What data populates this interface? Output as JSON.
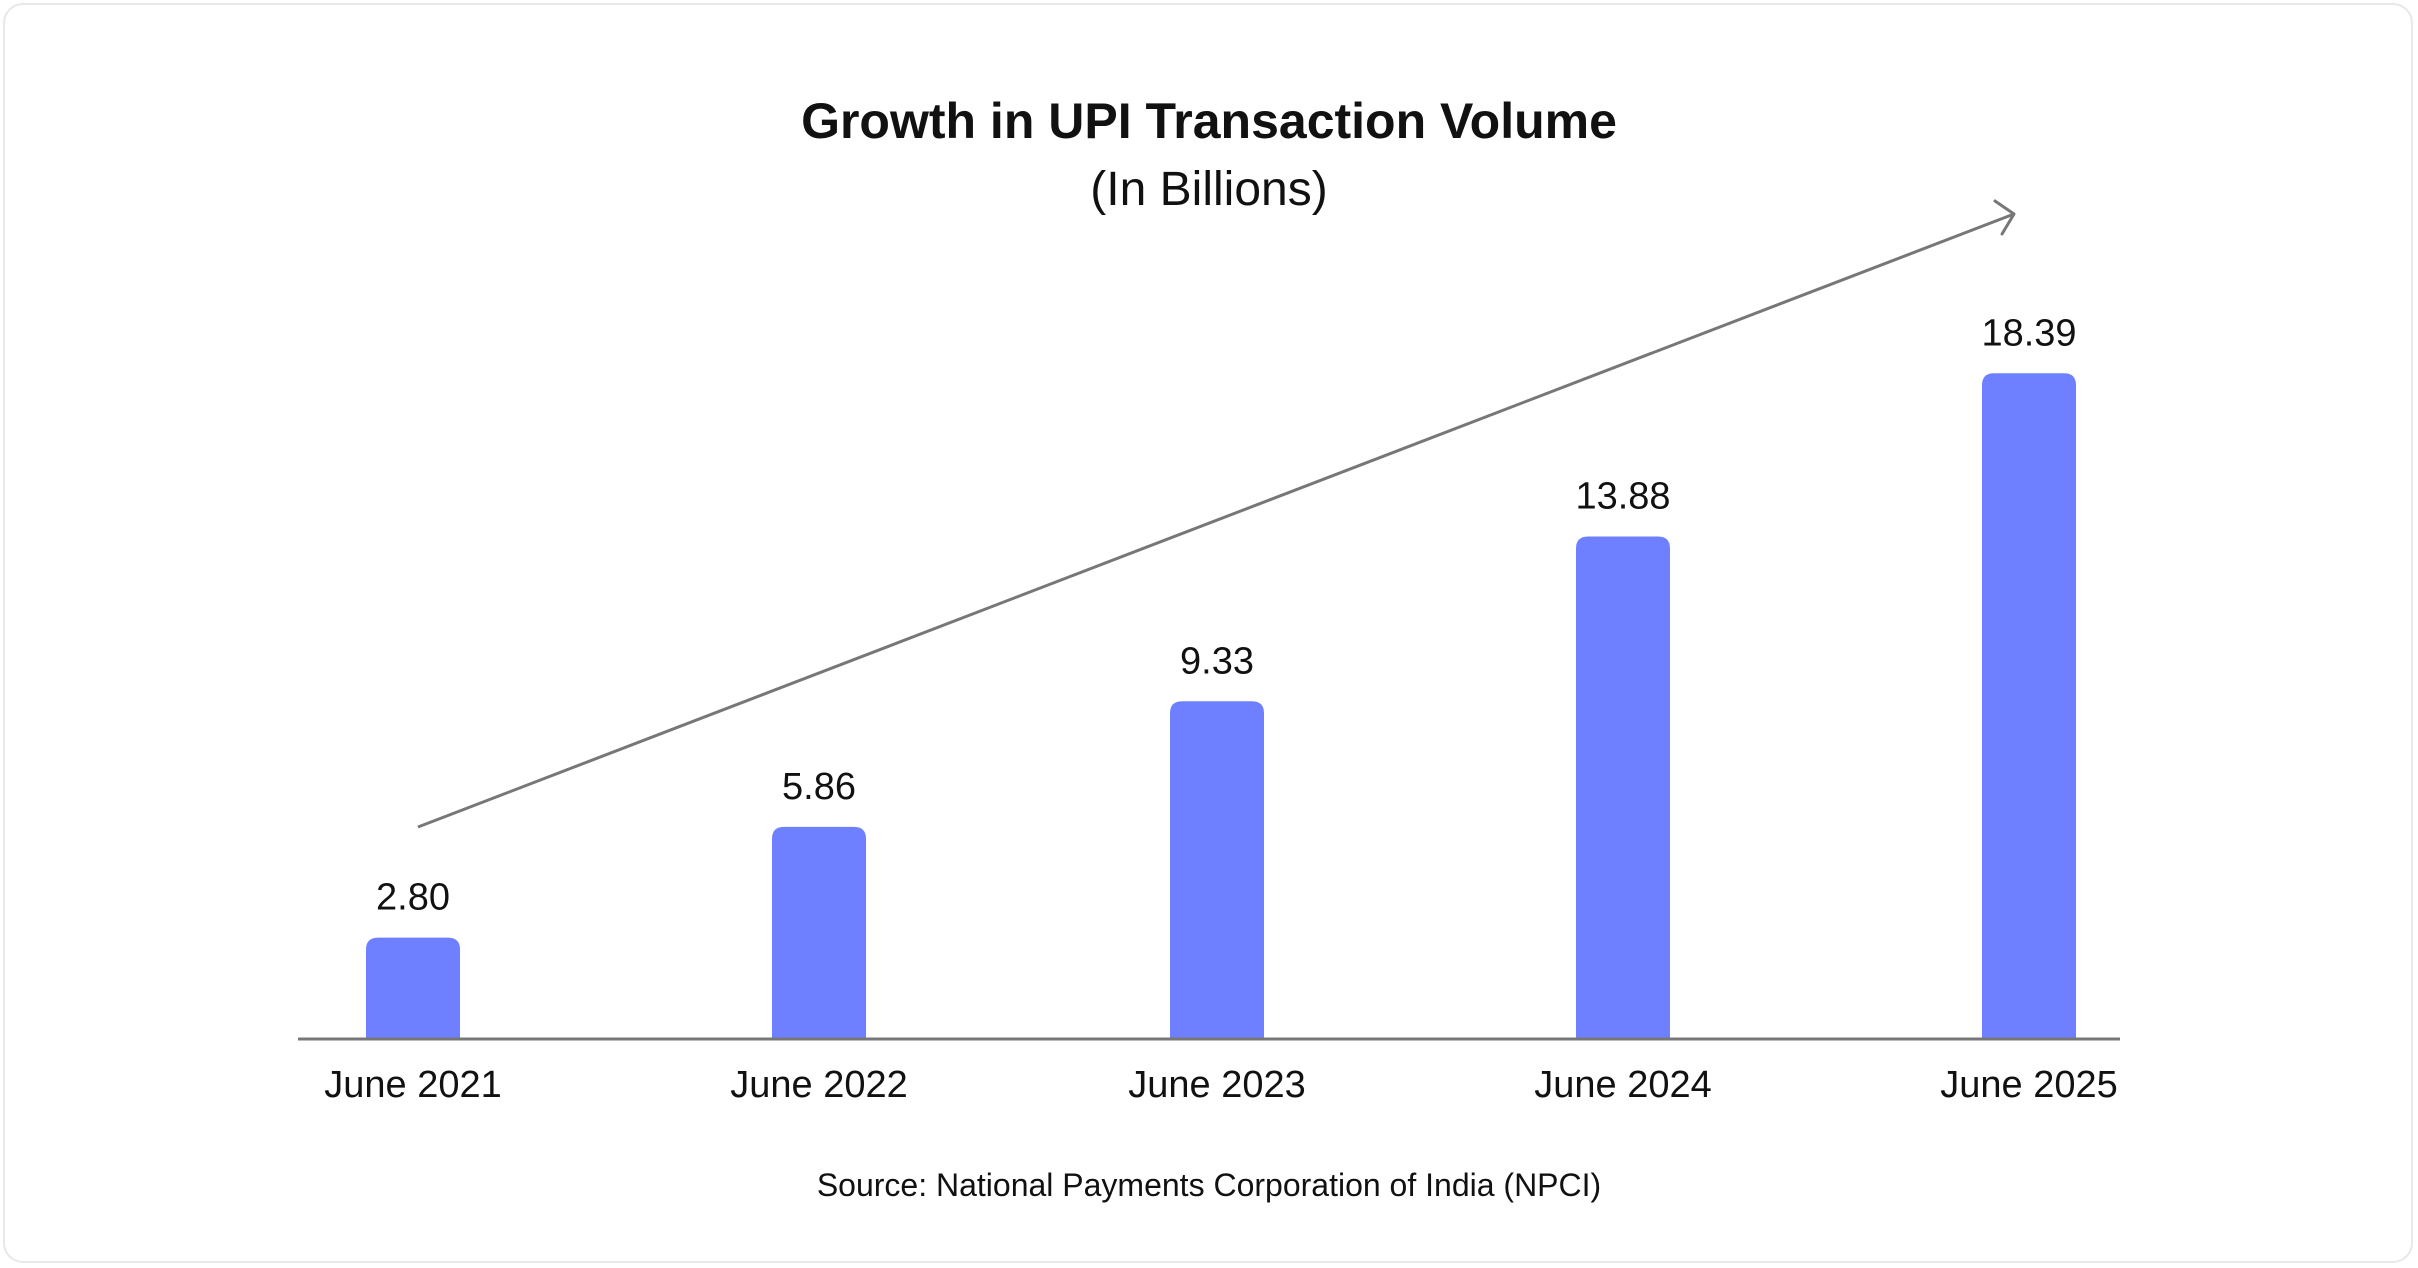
{
  "chart_data": {
    "type": "bar",
    "title": "Growth in UPI Transaction Volume",
    "subtitle": "(In Billions)",
    "categories": [
      "June 2021",
      "June 2022",
      "June 2023",
      "June 2024",
      "June 2025"
    ],
    "values": [
      2.8,
      5.86,
      9.33,
      13.88,
      18.39
    ],
    "value_labels": [
      "2.80",
      "5.86",
      "9.33",
      "13.88",
      "18.39"
    ],
    "xlabel": "",
    "ylabel": "",
    "ylim": [
      0,
      20
    ],
    "grid": false,
    "legend": "none",
    "trend_arrow": true,
    "source": "Source: National Payments Corporation of India (NPCI)",
    "colors": {
      "bar": "#6E80FF",
      "axis": "#777777",
      "arrow": "#777777",
      "text": "#111111"
    }
  }
}
